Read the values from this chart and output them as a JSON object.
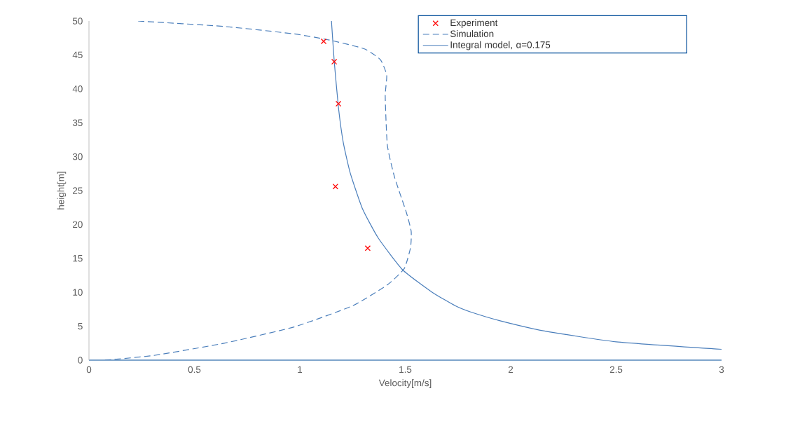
{
  "chart_data": {
    "type": "line",
    "xlabel": "Velocity[m/s]",
    "ylabel": "height[m]",
    "xlim": [
      0,
      3
    ],
    "ylim": [
      0,
      50
    ],
    "xticks": [
      0,
      0.5,
      1,
      1.5,
      2,
      2.5,
      3
    ],
    "yticks": [
      0,
      5,
      10,
      15,
      20,
      25,
      30,
      35,
      40,
      45,
      50
    ],
    "legend": "top right",
    "grid": false,
    "series": [
      {
        "name": "Experiment",
        "type": "scatter",
        "marker": "cross",
        "color": "#ff0000",
        "x": [
          1.113,
          1.163,
          1.183,
          1.169,
          1.322
        ],
        "values": [
          47.0,
          44.0,
          37.8,
          25.6,
          16.5
        ]
      },
      {
        "name": "Simulation",
        "line_style": "dashed",
        "marker": "none",
        "color": "#4a7ebb",
        "x": [
          0.233,
          0.641,
          0.973,
          1.14,
          1.306,
          1.382,
          1.412,
          1.405,
          1.415,
          1.449,
          1.505,
          1.528,
          1.525,
          1.495,
          1.415,
          1.249,
          0.973,
          0.641,
          0.309,
          0.076
        ],
        "values": [
          50,
          49.2,
          48.1,
          47.2,
          45.9,
          44.3,
          42.0,
          38.9,
          31.7,
          27.0,
          21.8,
          19.0,
          16.6,
          13.5,
          11.1,
          8.0,
          4.9,
          2.5,
          0.7,
          0
        ]
      },
      {
        "name": "Integral model, α=0.175",
        "line_style": "solid",
        "marker": "none",
        "color": "#4a7ebb",
        "x": [
          1.15,
          1.163,
          1.183,
          1.206,
          1.239,
          1.296,
          1.372,
          1.488,
          1.628,
          1.738,
          1.81,
          1.95,
          2.16,
          2.5,
          3.0
        ],
        "values": [
          50,
          44.1,
          37.3,
          32.1,
          27.6,
          22.4,
          18.0,
          13.3,
          10.0,
          8.0,
          7.1,
          5.8,
          4.3,
          2.7,
          1.6
        ]
      }
    ]
  }
}
